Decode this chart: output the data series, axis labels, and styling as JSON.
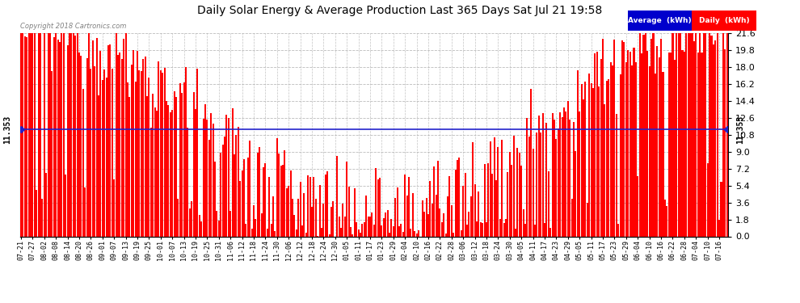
{
  "title": "Daily Solar Energy & Average Production Last 365 Days Sat Jul 21 19:58",
  "copyright": "Copyright 2018 Cartronics.com",
  "average_value": 11.353,
  "ylim": [
    0.0,
    21.6
  ],
  "yticks": [
    0.0,
    1.8,
    3.6,
    5.4,
    7.2,
    9.0,
    10.8,
    12.6,
    14.4,
    16.2,
    18.0,
    19.8,
    21.6
  ],
  "bar_color": "#FF0000",
  "average_line_color": "#2222CC",
  "background_color": "#FFFFFF",
  "plot_bg_color": "#FFFFFF",
  "grid_color": "#AAAAAA",
  "legend_avg_bg": "#0000CC",
  "legend_daily_bg": "#FF0000",
  "legend_text_color": "#FFFFFF",
  "num_days": 365,
  "x_tick_labels": [
    "07-21",
    "07-27",
    "08-02",
    "08-08",
    "08-14",
    "08-20",
    "08-26",
    "09-01",
    "09-07",
    "09-13",
    "09-19",
    "09-25",
    "10-01",
    "10-07",
    "10-13",
    "10-19",
    "10-25",
    "10-31",
    "11-06",
    "11-12",
    "11-18",
    "11-24",
    "11-30",
    "12-06",
    "12-12",
    "12-18",
    "12-24",
    "12-30",
    "01-05",
    "01-11",
    "01-17",
    "01-23",
    "01-29",
    "02-04",
    "02-10",
    "02-16",
    "02-22",
    "02-28",
    "03-06",
    "03-12",
    "03-18",
    "03-24",
    "03-30",
    "04-05",
    "04-11",
    "04-17",
    "04-23",
    "04-29",
    "05-05",
    "05-11",
    "05-17",
    "05-23",
    "05-29",
    "06-04",
    "06-10",
    "06-16",
    "06-22",
    "06-28",
    "07-04",
    "07-10",
    "07-16"
  ],
  "x_tick_positions": [
    0,
    6,
    12,
    18,
    24,
    30,
    36,
    42,
    48,
    54,
    60,
    66,
    72,
    78,
    84,
    90,
    96,
    102,
    108,
    114,
    120,
    126,
    132,
    138,
    144,
    150,
    156,
    162,
    168,
    174,
    180,
    186,
    192,
    198,
    204,
    210,
    216,
    222,
    228,
    234,
    240,
    246,
    252,
    258,
    264,
    270,
    276,
    282,
    288,
    294,
    300,
    306,
    312,
    318,
    324,
    330,
    336,
    342,
    348,
    354,
    360
  ],
  "seed": 12345
}
